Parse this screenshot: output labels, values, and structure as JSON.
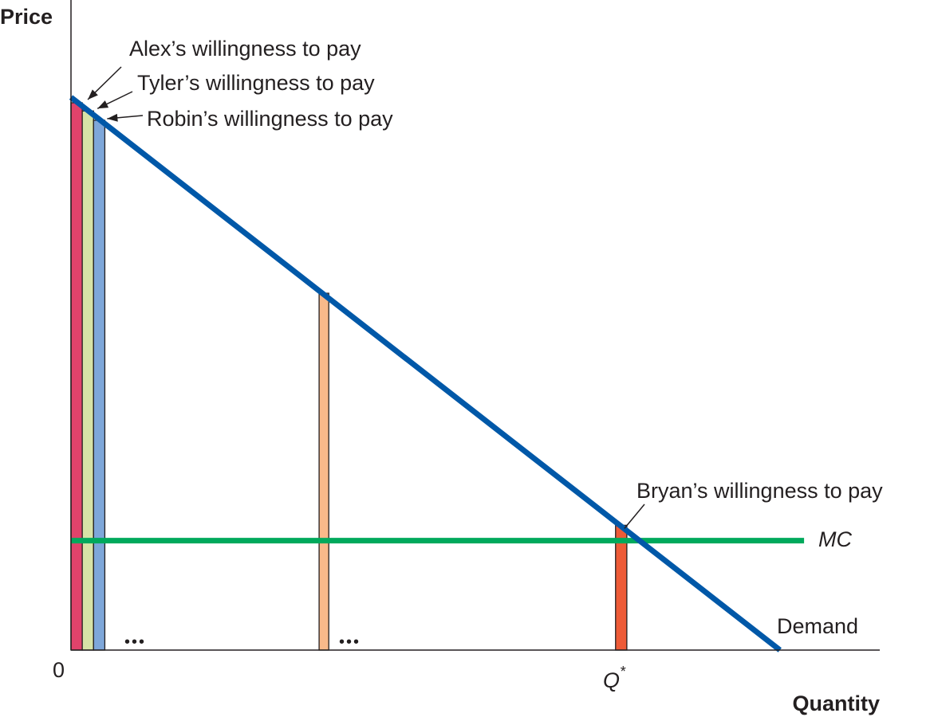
{
  "chart_data": {
    "type": "bar",
    "title": "",
    "xlabel": "Quantity",
    "ylabel": "Price",
    "origin_label": "0",
    "qstar_label": "Q",
    "qstar_sup": "*",
    "ellipsis": "•••",
    "grid": false,
    "xlim": [
      0,
      100
    ],
    "ylim": [
      0,
      100
    ],
    "demand": {
      "name": "Demand",
      "color": "#0058a8",
      "points": [
        [
          0,
          101
        ],
        [
          88,
          0
        ]
      ]
    },
    "mc": {
      "name": "MC",
      "color": "#00a95c",
      "value": 20
    },
    "bars": [
      {
        "id": "alex",
        "x": 0.7,
        "width": 1.4,
        "value": 100,
        "color": "#e0436b"
      },
      {
        "id": "tyler",
        "x": 2.1,
        "width": 1.4,
        "value": 98.5,
        "color": "#d7e3a6"
      },
      {
        "id": "robin",
        "x": 3.5,
        "width": 1.4,
        "value": 96.8,
        "color": "#7ea7d9"
      },
      {
        "id": "mid",
        "x": 31.4,
        "width": 1.2,
        "value": 65.2,
        "color": "#f9b98a"
      },
      {
        "id": "bryan",
        "x": 68.3,
        "width": 1.4,
        "value": 22.8,
        "color": "#ee5b37"
      }
    ],
    "annotations": [
      {
        "id": "alex",
        "text": "Alex’s willingness to pay"
      },
      {
        "id": "tyler",
        "text": "Tyler’s willingness to pay"
      },
      {
        "id": "robin",
        "text": "Robin’s willingness to pay"
      },
      {
        "id": "bryan",
        "text": "Bryan’s willingness to pay"
      }
    ]
  }
}
